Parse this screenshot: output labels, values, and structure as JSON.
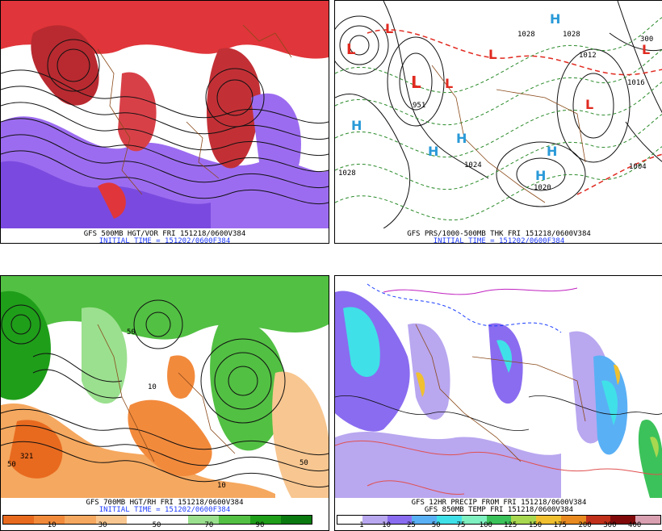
{
  "panels": {
    "vort": {
      "caption1": "GFS 500MB HGT/VOR FRI 151218/0600V384",
      "caption2": "INITIAL TIME = 151202/0600F384"
    },
    "prs": {
      "caption1": "GFS PRS/1000-500MB THK FRI 151218/0600V384",
      "caption2": "INITIAL TIME = 151202/0600F384",
      "labels": [
        "1028",
        "1012",
        "300",
        "1016",
        "1020",
        "1024",
        "1004",
        "1028",
        "951",
        "1028"
      ],
      "low_symbol": "L",
      "high_symbol": "H"
    },
    "rh": {
      "caption1": "GFS 700MB HGT/RH FRI 151218/0600V384",
      "caption2": "INITIAL TIME = 151202/0600F384",
      "labels": [
        "321",
        "50",
        "50",
        "10",
        "10",
        "50"
      ],
      "colorbar": {
        "colors": [
          "#e86a1f",
          "#f28a3c",
          "#f5a85f",
          "#f8c690",
          "#ffffff",
          "#ffffff",
          "#9be08f",
          "#52c043",
          "#1f9e1a",
          "#0a7a10"
        ],
        "ticks": [
          "10",
          "30",
          "50",
          "70",
          "90"
        ]
      }
    },
    "precip": {
      "caption1": "GFS 12HR PRECIP FROM FRI 151218/0600V384",
      "caption2": "GFS 850MB TEMP FRI 151218/0600V384",
      "colorbar": {
        "colors": [
          "#ffffff",
          "#b9a7f0",
          "#8a6cf0",
          "#5ab0f5",
          "#40e0e8",
          "#7ff0c0",
          "#3cc25a",
          "#a8d850",
          "#f0c030",
          "#e88a20",
          "#c0301a",
          "#800a0a",
          "#d8a0b0"
        ],
        "ticks": [
          "1",
          "10",
          "25",
          "50",
          "75",
          "100",
          "125",
          "150",
          "175",
          "200",
          "300",
          "400"
        ]
      }
    }
  }
}
